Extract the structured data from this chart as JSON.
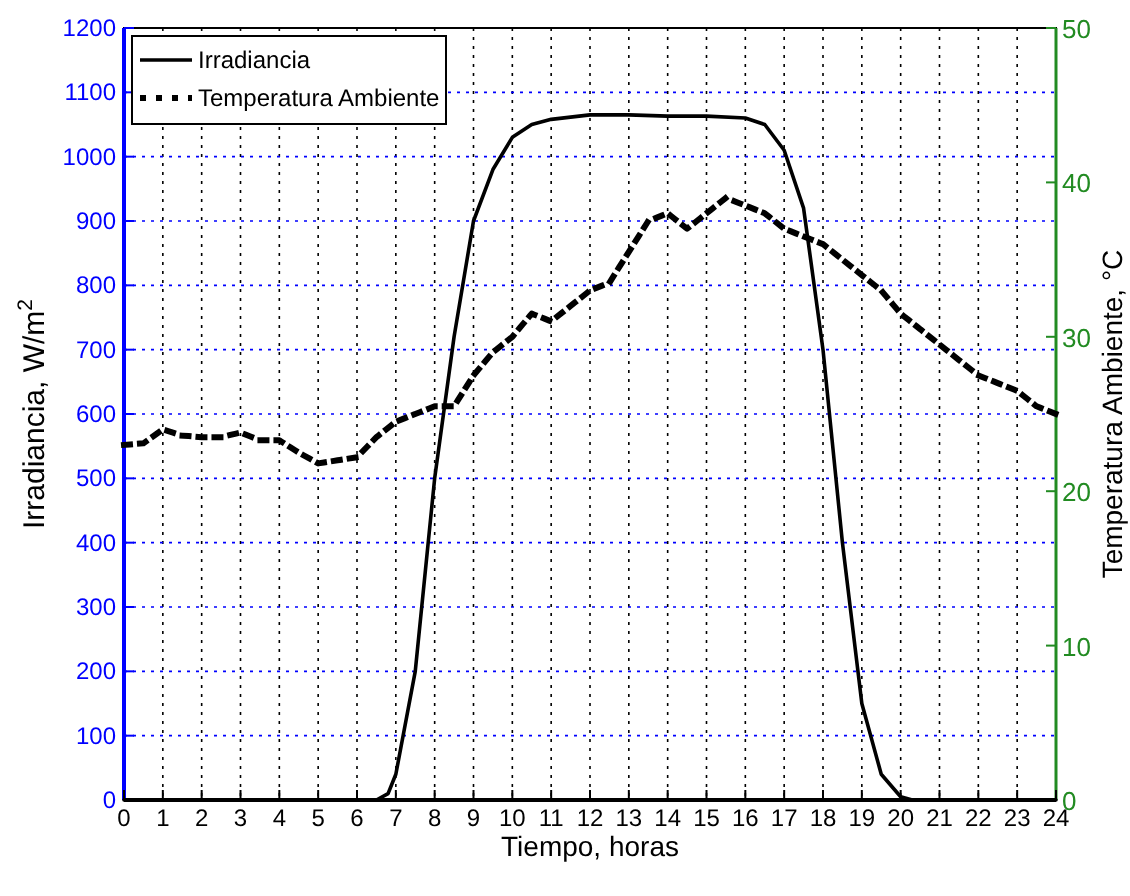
{
  "chart_data": {
    "type": "line",
    "xlabel": "Tiempo, horas",
    "ylabel": "Irradiancia, W/m$^{2}$",
    "y2label": "Temperatura Ambiente, °C",
    "xlim": [
      0,
      24
    ],
    "xticks": [
      0,
      1,
      2,
      3,
      4,
      5,
      6,
      7,
      8,
      9,
      10,
      11,
      12,
      13,
      14,
      15,
      16,
      17,
      18,
      19,
      20,
      21,
      22,
      23,
      24
    ],
    "ylim": [
      0,
      1200
    ],
    "yticks": [
      0,
      100,
      200,
      300,
      400,
      500,
      600,
      700,
      800,
      900,
      1000,
      1100,
      1200
    ],
    "y2lim": [
      0,
      50
    ],
    "y2ticks": [
      0,
      10,
      20,
      30,
      40,
      50
    ],
    "grid": true,
    "legend": "top left",
    "series": [
      {
        "name": "Irradiancia",
        "color": "#000000",
        "line_style": "solid",
        "x": [
          0,
          6.5,
          6.8,
          7,
          7.5,
          8,
          8.5,
          9,
          9.5,
          10,
          10.5,
          11,
          12,
          13,
          14,
          15,
          16,
          16.5,
          17,
          17.5,
          18,
          18.5,
          19,
          19.5,
          20,
          20.3,
          24
        ],
        "values": [
          0,
          0,
          10,
          40,
          200,
          500,
          720,
          900,
          980,
          1030,
          1050,
          1058,
          1065,
          1065,
          1063,
          1063,
          1060,
          1050,
          1010,
          920,
          700,
          400,
          150,
          40,
          5,
          0,
          0
        ]
      },
      {
        "name": "Temperatura Ambiente",
        "color": "#000000",
        "line_style": "dotted",
        "axis": "y2",
        "x": [
          0,
          0.5,
          1,
          1.5,
          2,
          2.5,
          3,
          3.5,
          4,
          4.5,
          5,
          5.5,
          6,
          6.5,
          7,
          7.5,
          8,
          8.5,
          9,
          9.5,
          10,
          10.5,
          11,
          11.5,
          12,
          12.5,
          13,
          13.5,
          14,
          14.5,
          15,
          15.5,
          16,
          16.5,
          17,
          17.5,
          18,
          18.5,
          19,
          19.5,
          20,
          20.5,
          21,
          21.5,
          22,
          22.5,
          23,
          23.5,
          24
        ],
        "values": [
          23,
          23.1,
          24,
          23.6,
          23.5,
          23.5,
          23.8,
          23.3,
          23.3,
          22.5,
          21.8,
          22,
          22.2,
          23.5,
          24.5,
          25,
          25.5,
          25.5,
          27.5,
          29,
          30,
          31.5,
          31,
          32,
          33,
          33.5,
          35.5,
          37.5,
          38,
          37,
          38,
          39,
          38.5,
          38,
          37,
          36.5,
          36,
          35,
          34,
          33,
          31.5,
          30.5,
          29.5,
          28.5,
          27.5,
          27,
          26.5,
          25.5,
          25
        ]
      }
    ]
  }
}
